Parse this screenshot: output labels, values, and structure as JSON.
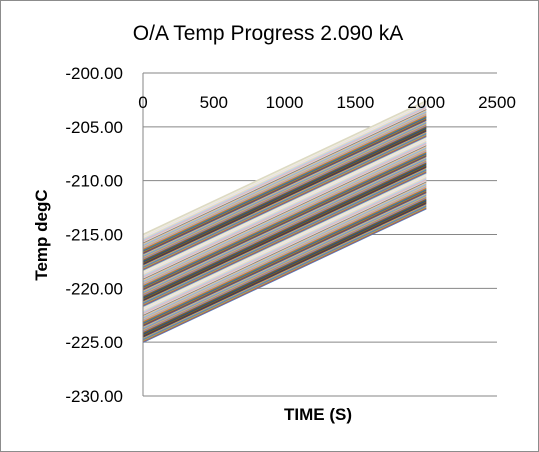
{
  "chart_data": {
    "type": "line",
    "title": "O/A Temp Progress 2.090 kA",
    "xlabel": "TIME (S)",
    "ylabel": "Temp degC",
    "xlim": [
      0,
      2500
    ],
    "ylim": [
      -230,
      -200
    ],
    "x_ticks": [
      0,
      500,
      1000,
      1500,
      2000,
      2500
    ],
    "y_ticks": [
      -200,
      -205,
      -210,
      -215,
      -220,
      -225,
      -230
    ],
    "x_tick_labels": [
      "0",
      "500",
      "1000",
      "1500",
      "2000",
      "2500"
    ],
    "y_tick_labels": [
      "-200.00",
      "-205.00",
      "-210.00",
      "-215.00",
      "-220.00",
      "-225.00",
      "-230.00"
    ],
    "x_axis_position": "top",
    "grid": "horizontal major gridlines",
    "legend": "none",
    "series_band": {
      "x_start": 0,
      "x_end": 2000,
      "y_start_min": -225.0,
      "y_start_max": -215.0,
      "rise_over_range": 12.4,
      "line_count": 120
    },
    "palette": [
      "#4f81bd",
      "#c0504d",
      "#9bbb59",
      "#8064a2",
      "#4bacc6",
      "#f79646",
      "#2c4d75",
      "#772c2a",
      "#5f7530",
      "#4d3b62",
      "#276a7c",
      "#b65708",
      "#729aca",
      "#cd7371",
      "#afc97a",
      "#9983b5",
      "#6fbdd1",
      "#f9ab6b",
      "#3a679c",
      "#9f3b38",
      "#7f9c40",
      "#664f83",
      "#3490a6",
      "#f3750b",
      "#95b3d7",
      "#d99694",
      "#c3d69b",
      "#b2a2c7",
      "#93cddd",
      "#fac08f",
      "#808080",
      "#d9d9d9",
      "#e6b9b8",
      "#ccc0da",
      "#b7dde8",
      "#fbd5b5",
      "#dbeef3",
      "#f2dcdb",
      "#ebf1dd",
      "#ddd9c3"
    ]
  }
}
